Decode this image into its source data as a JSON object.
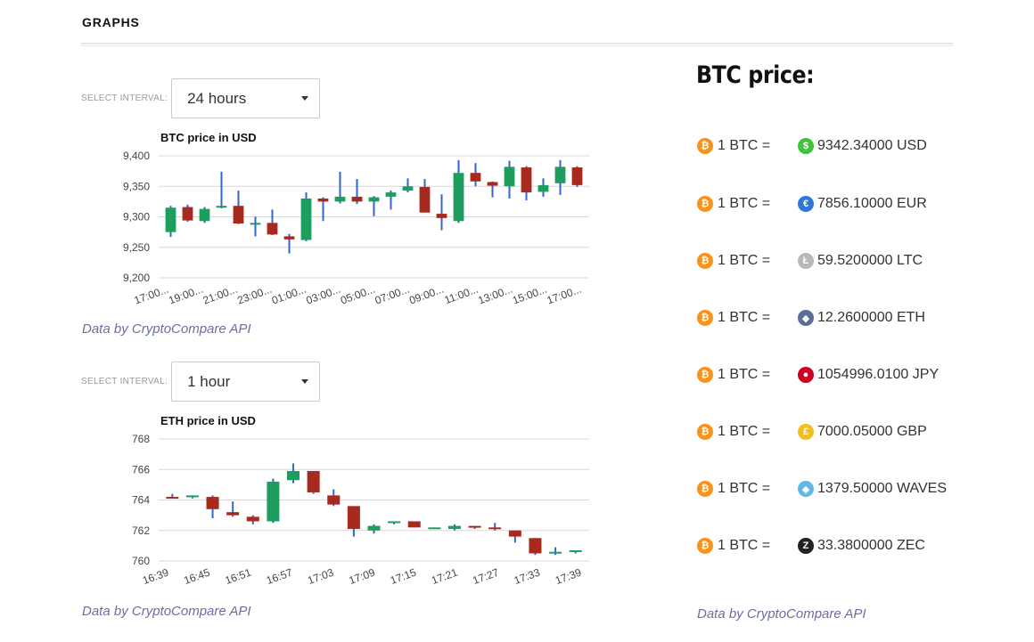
{
  "section": {
    "title": "GRAPHS"
  },
  "btc_chart": {
    "interval_label": "SELECT INTERVAL:",
    "interval_value": "24 hours",
    "credit": "Data by CryptoCompare API"
  },
  "eth_chart": {
    "interval_label": "SELECT INTERVAL:",
    "interval_value": "1 hour",
    "credit": "Data by CryptoCompare API"
  },
  "prices": {
    "title": "BTC price:",
    "credit": "Data by CryptoCompare API",
    "rows": [
      {
        "left": "1 BTC =",
        "value": "9342.34000 USD",
        "icon": "usd-icon",
        "color": "#3cc43c",
        "glyph": "$"
      },
      {
        "left": "1 BTC =",
        "value": "7856.10000 EUR",
        "icon": "eur-icon",
        "color": "#2e78d8",
        "glyph": "€"
      },
      {
        "left": "1 BTC =",
        "value": "59.5200000 LTC",
        "icon": "ltc-icon",
        "color": "#b8b8b8",
        "glyph": "Ł"
      },
      {
        "left": "1 BTC =",
        "value": "12.2600000 ETH",
        "icon": "eth-icon",
        "color": "#5a6e95",
        "glyph": "◆"
      },
      {
        "left": "1 BTC =",
        "value": "1054996.0100 JPY",
        "icon": "jpy-flag-icon",
        "color": "#cc0022",
        "glyph": "●"
      },
      {
        "left": "1 BTC =",
        "value": "7000.05000 GBP",
        "icon": "gbp-icon",
        "color": "#f0c020",
        "glyph": "£"
      },
      {
        "left": "1 BTC =",
        "value": "1379.50000 WAVES",
        "icon": "waves-icon",
        "color": "#5fb8e6",
        "glyph": "◆"
      },
      {
        "left": "1 BTC =",
        "value": "33.3800000 ZEC",
        "icon": "zec-icon",
        "color": "#222222",
        "glyph": "Z"
      }
    ]
  },
  "chart_data": [
    {
      "type": "candlestick",
      "title": "BTC price in USD",
      "ylim": [
        9200,
        9400
      ],
      "yticks": [
        9200,
        9250,
        9300,
        9350,
        9400
      ],
      "ytick_labels": [
        "9,200",
        "9,250",
        "9,300",
        "9,350",
        "9,400"
      ],
      "xtick_labels": [
        "17:00...",
        "19:00...",
        "21:00...",
        "23:00...",
        "01:00...",
        "03:00...",
        "05:00...",
        "07:00...",
        "09:00...",
        "11:00...",
        "13:00...",
        "15:00...",
        "17:00..."
      ],
      "up_color": "#1e9e5e",
      "down_color": "#a8291d",
      "wick_color": "#3366cc",
      "candles": [
        {
          "o": 9275,
          "h": 9318,
          "l": 9267,
          "c": 9315
        },
        {
          "o": 9316,
          "h": 9320,
          "l": 9292,
          "c": 9294
        },
        {
          "o": 9293,
          "h": 9316,
          "l": 9290,
          "c": 9313
        },
        {
          "o": 9315,
          "h": 9374,
          "l": 9314,
          "c": 9318
        },
        {
          "o": 9318,
          "h": 9343,
          "l": 9288,
          "c": 9289
        },
        {
          "o": 9289,
          "h": 9300,
          "l": 9268,
          "c": 9290
        },
        {
          "o": 9290,
          "h": 9312,
          "l": 9270,
          "c": 9271
        },
        {
          "o": 9268,
          "h": 9272,
          "l": 9240,
          "c": 9263
        },
        {
          "o": 9262,
          "h": 9340,
          "l": 9260,
          "c": 9330
        },
        {
          "o": 9330,
          "h": 9332,
          "l": 9293,
          "c": 9325
        },
        {
          "o": 9325,
          "h": 9374,
          "l": 9322,
          "c": 9333
        },
        {
          "o": 9333,
          "h": 9362,
          "l": 9321,
          "c": 9325
        },
        {
          "o": 9325,
          "h": 9334,
          "l": 9301,
          "c": 9332
        },
        {
          "o": 9333,
          "h": 9343,
          "l": 9312,
          "c": 9340
        },
        {
          "o": 9343,
          "h": 9363,
          "l": 9340,
          "c": 9350
        },
        {
          "o": 9349,
          "h": 9362,
          "l": 9309,
          "c": 9307
        },
        {
          "o": 9305,
          "h": 9337,
          "l": 9278,
          "c": 9298
        },
        {
          "o": 9293,
          "h": 9393,
          "l": 9290,
          "c": 9372
        },
        {
          "o": 9372,
          "h": 9388,
          "l": 9350,
          "c": 9358
        },
        {
          "o": 9357,
          "h": 9358,
          "l": 9332,
          "c": 9351
        },
        {
          "o": 9350,
          "h": 9392,
          "l": 9330,
          "c": 9382
        },
        {
          "o": 9381,
          "h": 9383,
          "l": 9327,
          "c": 9340
        },
        {
          "o": 9341,
          "h": 9363,
          "l": 9333,
          "c": 9352
        },
        {
          "o": 9355,
          "h": 9393,
          "l": 9336,
          "c": 9382
        },
        {
          "o": 9381,
          "h": 9383,
          "l": 9349,
          "c": 9352
        }
      ]
    },
    {
      "type": "candlestick",
      "title": "ETH price in USD",
      "ylim": [
        760,
        768
      ],
      "yticks": [
        760,
        762,
        764,
        766,
        768
      ],
      "ytick_labels": [
        "760",
        "762",
        "764",
        "766",
        "768"
      ],
      "xtick_labels": [
        "16:39",
        "16:45",
        "16:51",
        "16:57",
        "17:03",
        "17:09",
        "17:15",
        "17:21",
        "17:27",
        "17:33",
        "17:39"
      ],
      "up_color": "#1e9e5e",
      "down_color": "#a8291d",
      "wick_color": "#3366cc",
      "candles": [
        {
          "o": 764.2,
          "h": 764.4,
          "l": 764.1,
          "c": 764.1
        },
        {
          "o": 764.2,
          "h": 764.3,
          "l": 764.1,
          "c": 764.3
        },
        {
          "o": 764.2,
          "h": 764.3,
          "l": 762.8,
          "c": 763.4
        },
        {
          "o": 763.2,
          "h": 763.9,
          "l": 762.9,
          "c": 763.0
        },
        {
          "o": 762.9,
          "h": 763.0,
          "l": 762.4,
          "c": 762.6
        },
        {
          "o": 762.6,
          "h": 765.4,
          "l": 762.5,
          "c": 765.2
        },
        {
          "o": 765.3,
          "h": 766.4,
          "l": 765.1,
          "c": 765.9
        },
        {
          "o": 765.9,
          "h": 765.9,
          "l": 764.4,
          "c": 764.5
        },
        {
          "o": 764.3,
          "h": 764.7,
          "l": 763.6,
          "c": 763.7
        },
        {
          "o": 763.6,
          "h": 763.6,
          "l": 761.6,
          "c": 762.1
        },
        {
          "o": 762.0,
          "h": 762.4,
          "l": 761.8,
          "c": 762.3
        },
        {
          "o": 762.5,
          "h": 762.6,
          "l": 762.4,
          "c": 762.6
        },
        {
          "o": 762.6,
          "h": 762.6,
          "l": 762.2,
          "c": 762.2
        },
        {
          "o": 762.2,
          "h": 762.2,
          "l": 762.1,
          "c": 762.2
        },
        {
          "o": 762.1,
          "h": 762.4,
          "l": 762.0,
          "c": 762.3
        },
        {
          "o": 762.3,
          "h": 762.3,
          "l": 762.1,
          "c": 762.2
        },
        {
          "o": 762.2,
          "h": 762.5,
          "l": 762.0,
          "c": 762.1
        },
        {
          "o": 762.0,
          "h": 762.0,
          "l": 761.2,
          "c": 761.6
        },
        {
          "o": 761.5,
          "h": 761.5,
          "l": 760.4,
          "c": 760.5
        },
        {
          "o": 760.5,
          "h": 760.9,
          "l": 760.4,
          "c": 760.6
        },
        {
          "o": 760.6,
          "h": 760.7,
          "l": 760.5,
          "c": 760.7
        }
      ]
    }
  ]
}
